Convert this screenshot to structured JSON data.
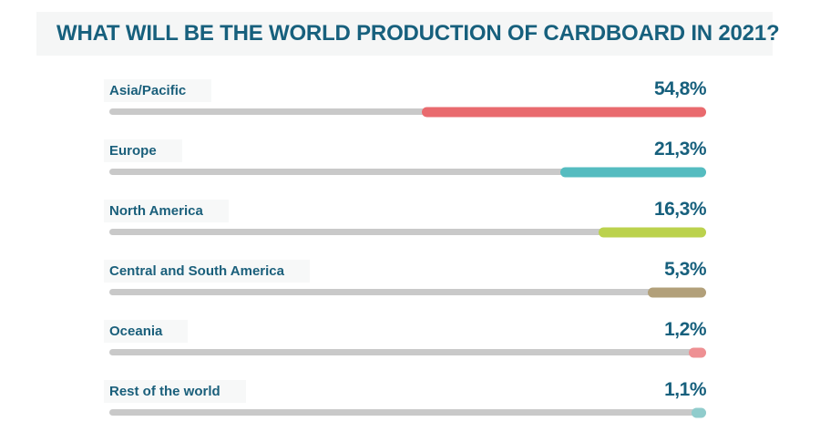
{
  "chart_data": {
    "type": "bar",
    "orientation": "horizontal",
    "title": "WHAT WILL BE THE WORLD PRODUCTION OF CARDBOARD IN 2021?",
    "unit": "%",
    "decimal_separator": ",",
    "categories": [
      "Asia/Pacific",
      "Europe",
      "North America",
      "Central and South America",
      "Oceania",
      "Rest of the world"
    ],
    "values": [
      54.8,
      21.3,
      16.3,
      5.3,
      1.2,
      1.1
    ],
    "xlim": [
      0,
      100
    ],
    "grid": false,
    "legend": false,
    "bars_anchored": "right",
    "track_color": "#c9c9c9",
    "text_color": "#17607d",
    "background_color": "#ffffff",
    "rows": [
      {
        "label": "Asia/Pacific",
        "value": 54.8,
        "value_label": "54,8%",
        "color": "#e96a6e",
        "bar_fraction": 0.476
      },
      {
        "label": "Europe",
        "value": 21.3,
        "value_label": "21,3%",
        "color": "#55bcc0",
        "bar_fraction": 0.244
      },
      {
        "label": "North America",
        "value": 16.3,
        "value_label": "16,3%",
        "color": "#bbd24d",
        "bar_fraction": 0.18
      },
      {
        "label": "Central and South America",
        "value": 5.3,
        "value_label": "5,3%",
        "color": "#b2a07a",
        "bar_fraction": 0.098
      },
      {
        "label": "Oceania",
        "value": 1.2,
        "value_label": "1,2%",
        "color": "#ee9093",
        "bar_fraction": 0.029
      },
      {
        "label": "Rest of the world",
        "value": 1.1,
        "value_label": "1,1%",
        "color": "#90cccc",
        "bar_fraction": 0.025
      }
    ]
  }
}
